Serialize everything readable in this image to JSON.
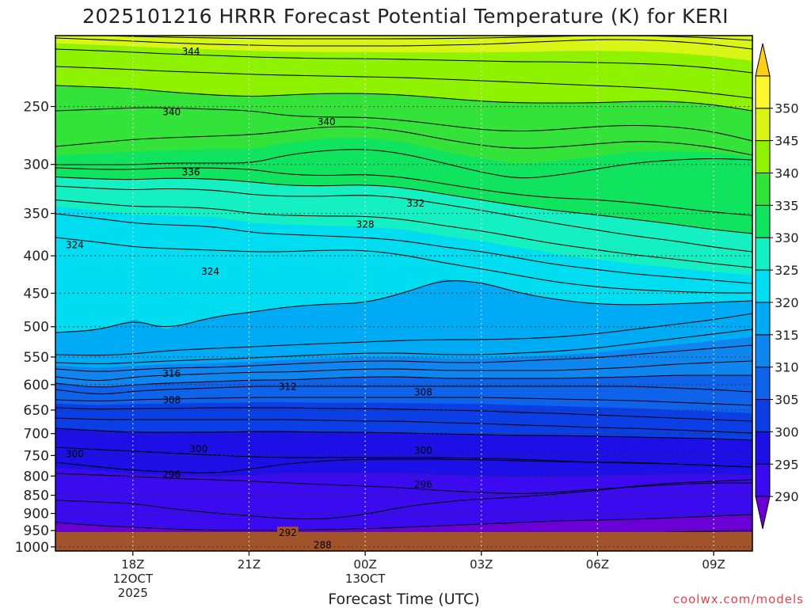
{
  "chart_data": {
    "type": "heatmap",
    "title": "2025101216 HRRR Forecast Potential Temperature (K) for KERI",
    "xlabel": "Forecast Time (UTC)",
    "ylabel": "",
    "x_ticks": [
      {
        "label": "18Z",
        "sub": [
          "12OCT",
          "2025"
        ]
      },
      {
        "label": "21Z",
        "sub": []
      },
      {
        "label": "00Z",
        "sub": [
          "13OCT"
        ]
      },
      {
        "label": "03Z",
        "sub": []
      },
      {
        "label": "06Z",
        "sub": []
      },
      {
        "label": "09Z",
        "sub": []
      }
    ],
    "x_range_hours": [
      -2,
      16
    ],
    "y_ticks": [
      250,
      300,
      350,
      400,
      450,
      500,
      550,
      600,
      650,
      700,
      750,
      800,
      850,
      900,
      950,
      1000
    ],
    "y_range_hPa": [
      200,
      1013
    ],
    "y_scale": "log",
    "colorbar": {
      "ticks": [
        290,
        295,
        300,
        305,
        310,
        315,
        320,
        325,
        330,
        335,
        340,
        345,
        350
      ],
      "colors": [
        "#6a00d6",
        "#3b0aee",
        "#1d10e6",
        "#0b3fe5",
        "#0f63eb",
        "#0f86ef",
        "#00abf5",
        "#00dcf0",
        "#15f0c2",
        "#10e35e",
        "#33e33a",
        "#8ef200",
        "#d9f515",
        "#fcf72e",
        "#fccf15"
      ],
      "extend": "both"
    },
    "contour_interval_K": 2,
    "contour_labels": [
      {
        "value": 344,
        "x_hour": 1.5,
        "p": 210
      },
      {
        "value": 340,
        "x_hour": 1.0,
        "p": 254
      },
      {
        "value": 340,
        "x_hour": 5.0,
        "p": 262
      },
      {
        "value": 336,
        "x_hour": 1.5,
        "p": 307
      },
      {
        "value": 332,
        "x_hour": 7.3,
        "p": 339
      },
      {
        "value": 328,
        "x_hour": 6.0,
        "p": 362
      },
      {
        "value": 324,
        "x_hour": -1.5,
        "p": 386
      },
      {
        "value": 324,
        "x_hour": 2.0,
        "p": 420
      },
      {
        "value": 316,
        "x_hour": 1.0,
        "p": 579
      },
      {
        "value": 312,
        "x_hour": 4.0,
        "p": 603
      },
      {
        "value": 308,
        "x_hour": 1.0,
        "p": 629
      },
      {
        "value": 308,
        "x_hour": 7.5,
        "p": 614
      },
      {
        "value": 300,
        "x_hour": -1.5,
        "p": 746
      },
      {
        "value": 300,
        "x_hour": 1.7,
        "p": 734
      },
      {
        "value": 300,
        "x_hour": 7.5,
        "p": 737
      },
      {
        "value": 296,
        "x_hour": 1.0,
        "p": 795
      },
      {
        "value": 296,
        "x_hour": 7.5,
        "p": 821
      },
      {
        "value": 292,
        "x_hour": 4.0,
        "p": 955
      },
      {
        "value": 288,
        "x_hour": 4.9,
        "p": 993
      }
    ],
    "surface": {
      "color": "#a3532a"
    },
    "grid": true,
    "legend": "colorbar right"
  },
  "credit": {
    "text": "coolwx.com/models",
    "color": "#e8404a"
  }
}
